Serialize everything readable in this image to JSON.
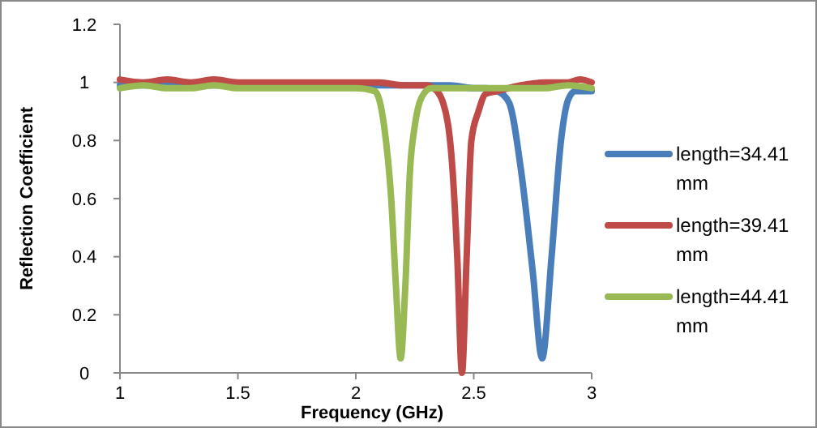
{
  "chart_data": {
    "type": "line",
    "xlabel": "Frequency (GHz)",
    "ylabel": "Reflection Coefficient",
    "xlim": [
      1,
      3
    ],
    "xticks": [
      1,
      1.5,
      2,
      2.5,
      3
    ],
    "ylim": [
      0,
      1.2
    ],
    "yticks": [
      0,
      0.2,
      0.4,
      0.6,
      0.8,
      1,
      1.2
    ],
    "legend": "right",
    "grid": false,
    "series": [
      {
        "name": "length=34.41 mm",
        "color": "#4a7ebb",
        "x": [
          1,
          1.2,
          1.4,
          2.2,
          2.4,
          2.5,
          2.55,
          2.6,
          2.65,
          2.7,
          2.75,
          2.79,
          2.83,
          2.87,
          2.9,
          2.93,
          2.96,
          3
        ],
        "values": [
          0.99,
          0.99,
          0.99,
          0.99,
          0.99,
          0.98,
          0.98,
          0.97,
          0.93,
          0.7,
          0.35,
          0.05,
          0.4,
          0.8,
          0.94,
          0.97,
          0.97,
          0.97
        ]
      },
      {
        "name": "length=39.41 mm",
        "color": "#be4b48",
        "x": [
          1,
          1.1,
          1.2,
          1.3,
          1.4,
          1.5,
          1.6,
          1.7,
          1.8,
          1.9,
          2,
          2.1,
          2.2,
          2.3,
          2.33,
          2.37,
          2.41,
          2.43,
          2.45,
          2.47,
          2.49,
          2.52,
          2.55,
          2.6,
          2.7,
          2.8,
          2.9,
          2.95,
          3
        ],
        "values": [
          1.01,
          1,
          1.01,
          1,
          1.01,
          1,
          1,
          1,
          1,
          1,
          1,
          1,
          0.99,
          0.99,
          0.98,
          0.93,
          0.7,
          0.4,
          0,
          0.4,
          0.8,
          0.9,
          0.96,
          0.97,
          0.99,
          1,
          1,
          1.01,
          1
        ]
      },
      {
        "name": "length=44.41 mm",
        "color": "#98b954",
        "x": [
          1,
          1.1,
          1.2,
          1.3,
          1.4,
          1.5,
          1.6,
          1.7,
          1.8,
          1.9,
          2,
          2.08,
          2.12,
          2.15,
          2.17,
          2.19,
          2.21,
          2.23,
          2.25,
          2.28,
          2.32,
          2.4,
          2.5,
          2.6,
          2.7,
          2.8,
          2.9,
          3
        ],
        "values": [
          0.98,
          0.99,
          0.98,
          0.98,
          0.99,
          0.98,
          0.98,
          0.98,
          0.98,
          0.98,
          0.98,
          0.97,
          0.85,
          0.6,
          0.3,
          0.05,
          0.3,
          0.7,
          0.85,
          0.95,
          0.98,
          0.98,
          0.98,
          0.98,
          0.98,
          0.98,
          0.99,
          0.98
        ]
      }
    ]
  }
}
